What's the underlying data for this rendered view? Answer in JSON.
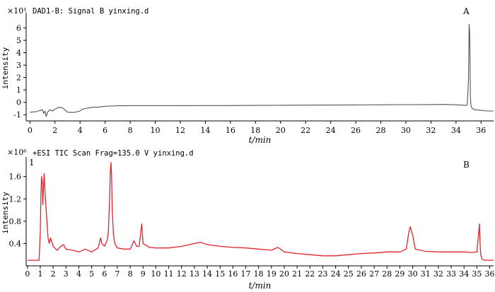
{
  "chart_data": [
    {
      "type": "line",
      "panel_label": "A",
      "title": "DAD1-B: Signal B yinxing.d",
      "scale_factor": "×10¹",
      "ylabel": "intensity",
      "xlabel": "t/min",
      "xlim": [
        -0.3,
        37
      ],
      "ylim": [
        -1.5,
        7
      ],
      "xticks": [
        0,
        2,
        4,
        6,
        8,
        10,
        12,
        14,
        16,
        18,
        20,
        22,
        24,
        26,
        28,
        30,
        32,
        34,
        36
      ],
      "yticks": [
        -1,
        0,
        1,
        2,
        3,
        4,
        5,
        6
      ],
      "series_color": "#4a5a52",
      "series": [
        {
          "name": "",
          "x": [
            0,
            0.5,
            1.0,
            1.1,
            1.2,
            1.3,
            1.4,
            1.6,
            1.8,
            2.0,
            2.3,
            2.6,
            3.0,
            3.5,
            4.0,
            4.2,
            4.4,
            4.7,
            5.0,
            5.5,
            6.0,
            6.5,
            7.0,
            8.0,
            10.0,
            12.0,
            14.0,
            16.0,
            18.0,
            20.0,
            22.0,
            24.0,
            26.0,
            28.0,
            30.0,
            32.0,
            33.0,
            34.0,
            34.8,
            34.9,
            35.0,
            35.05,
            35.1,
            35.15,
            35.2,
            35.3,
            35.5,
            36.0,
            36.5,
            37.0
          ],
          "y": [
            -0.8,
            -0.75,
            -0.6,
            -0.9,
            -0.7,
            -1.15,
            -0.8,
            -0.6,
            -0.7,
            -0.55,
            -0.4,
            -0.45,
            -0.8,
            -0.82,
            -0.7,
            -0.55,
            -0.5,
            -0.45,
            -0.4,
            -0.38,
            -0.32,
            -0.3,
            -0.28,
            -0.27,
            -0.27,
            -0.27,
            -0.26,
            -0.26,
            -0.25,
            -0.24,
            -0.23,
            -0.22,
            -0.21,
            -0.2,
            -0.19,
            -0.18,
            -0.17,
            -0.2,
            -0.25,
            -0.2,
            2.0,
            6.3,
            5.5,
            0.5,
            -0.3,
            -0.5,
            -0.6,
            -0.65,
            -0.7,
            -0.7
          ]
        }
      ]
    },
    {
      "type": "line",
      "panel_label": "B",
      "inset_label": "1",
      "title": "+ESI TIC Scan Frag=135.0 V yinxing.d",
      "scale_factor": "×10⁶",
      "ylabel": "intensity",
      "xlabel": "t/min",
      "xlim": [
        -0.1,
        36.3
      ],
      "ylim": [
        0,
        1.9
      ],
      "xticks": [
        0,
        1,
        2,
        3,
        4,
        5,
        6,
        7,
        8,
        9,
        10,
        11,
        12,
        13,
        14,
        15,
        16,
        17,
        18,
        19,
        20,
        21,
        22,
        23,
        24,
        25,
        26,
        27,
        28,
        29,
        30,
        31,
        32,
        33,
        34,
        35,
        36
      ],
      "yticks": [
        0.4,
        0.8,
        1.2,
        1.6
      ],
      "series_color": "#e0242c",
      "series": [
        {
          "name": "",
          "x": [
            0,
            0.5,
            0.9,
            1.0,
            1.05,
            1.1,
            1.15,
            1.2,
            1.25,
            1.3,
            1.4,
            1.5,
            1.6,
            1.7,
            1.8,
            2.0,
            2.3,
            2.6,
            2.8,
            3.0,
            3.5,
            4.0,
            4.5,
            5.0,
            5.5,
            5.7,
            5.8,
            6.0,
            6.2,
            6.3,
            6.4,
            6.45,
            6.5,
            6.55,
            6.6,
            6.7,
            6.8,
            7.0,
            7.5,
            8.0,
            8.3,
            8.5,
            8.7,
            8.8,
            8.9,
            9.0,
            9.5,
            10.0,
            11.0,
            12.0,
            13.0,
            13.5,
            14.0,
            15.0,
            16.0,
            17.0,
            18.0,
            19.0,
            19.5,
            20.0,
            21.0,
            22.0,
            23.0,
            24.0,
            25.0,
            26.0,
            27.0,
            28.0,
            29.0,
            29.5,
            29.7,
            29.8,
            30.0,
            30.2,
            31.0,
            32.0,
            33.0,
            34.0,
            34.5,
            35.0,
            35.1,
            35.2,
            35.25,
            35.3,
            35.4,
            35.6,
            36.0,
            36.3
          ],
          "y": [
            0.1,
            0.1,
            0.1,
            0.6,
            1.3,
            1.6,
            1.5,
            1.1,
            1.4,
            1.65,
            1.2,
            0.85,
            0.5,
            0.4,
            0.5,
            0.35,
            0.28,
            0.35,
            0.38,
            0.3,
            0.28,
            0.25,
            0.3,
            0.25,
            0.32,
            0.5,
            0.4,
            0.35,
            0.45,
            0.6,
            1.2,
            1.65,
            1.85,
            1.6,
            1.0,
            0.55,
            0.4,
            0.32,
            0.3,
            0.3,
            0.45,
            0.35,
            0.35,
            0.55,
            0.75,
            0.4,
            0.33,
            0.32,
            0.32,
            0.35,
            0.4,
            0.42,
            0.38,
            0.35,
            0.33,
            0.32,
            0.3,
            0.28,
            0.33,
            0.25,
            0.22,
            0.2,
            0.18,
            0.18,
            0.2,
            0.22,
            0.23,
            0.25,
            0.25,
            0.3,
            0.6,
            0.7,
            0.55,
            0.3,
            0.26,
            0.25,
            0.25,
            0.25,
            0.24,
            0.25,
            0.5,
            0.75,
            0.4,
            0.2,
            0.12,
            0.1,
            0.1,
            0.1
          ]
        }
      ]
    }
  ]
}
